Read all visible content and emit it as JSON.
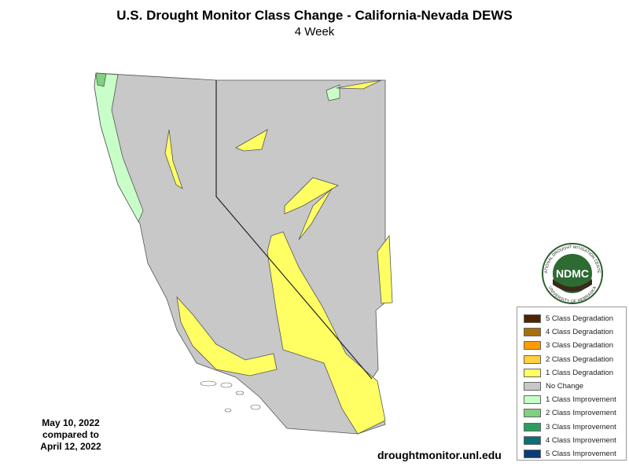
{
  "header": {
    "title": "U.S. Drought Monitor Class Change - California-Nevada DEWS",
    "subtitle": "4 Week"
  },
  "legend": {
    "items": [
      {
        "label": "5 Class Degradation",
        "color": "#4d2600"
      },
      {
        "label": "4 Class Degradation",
        "color": "#a8700a"
      },
      {
        "label": "3 Class Degradation",
        "color": "#ff9a00"
      },
      {
        "label": "2 Class Degradation",
        "color": "#ffd040"
      },
      {
        "label": "1 Class Degradation",
        "color": "#ffff64"
      },
      {
        "label": "No Change",
        "color": "#c8c8c8"
      },
      {
        "label": "1 Class Improvement",
        "color": "#c8ffc8"
      },
      {
        "label": "2 Class Improvement",
        "color": "#80d080"
      },
      {
        "label": "3 Class Improvement",
        "color": "#2e9e60"
      },
      {
        "label": "4 Class Improvement",
        "color": "#0e6e78"
      },
      {
        "label": "5 Class Improvement",
        "color": "#0a3c78"
      }
    ]
  },
  "dates": [
    "May 10, 2022",
    "compared to",
    "April 12, 2022"
  ],
  "logo": {
    "text": "NDMC",
    "top": "NATIONAL DROUGHT MITIGATION CENTER",
    "bottom": "UNIVERSITY OF NEBRASKA"
  },
  "footer": "droughtmonitor.unl.edu"
}
